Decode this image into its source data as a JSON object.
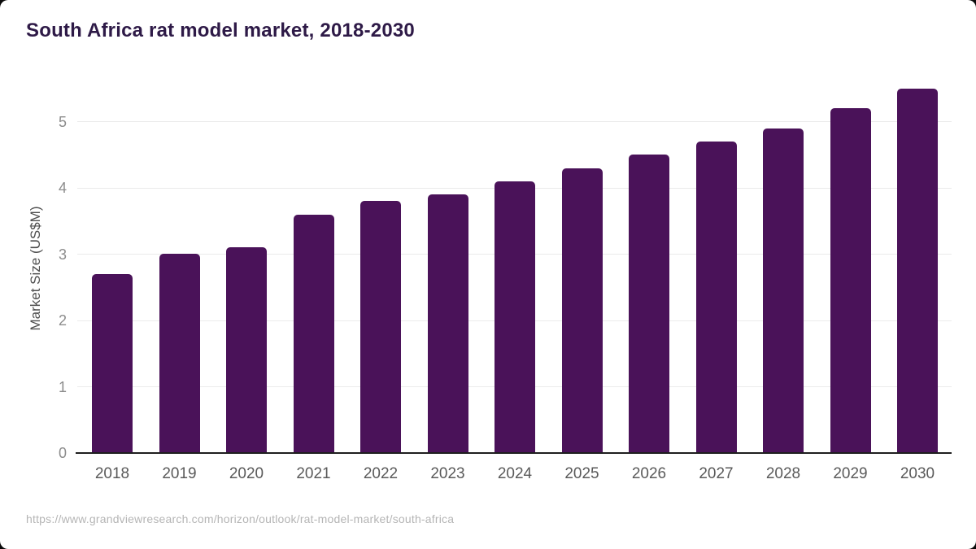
{
  "title": "South Africa rat model market, 2018-2030",
  "footer": {
    "source_url": "https://www.grandviewresearch.com/horizon/outlook/rat-model-market/south-africa"
  },
  "colors": {
    "bar": "#4a1259",
    "title_text": "#2e1a47",
    "axis_line": "#1f1f1f",
    "gridline": "#ebebeb",
    "y_tick_text": "#8c8c8c",
    "x_tick_text": "#5a5a5a",
    "y_axis_label_text": "#4d4d4d",
    "source_text": "#b5b5b5",
    "card_background": "#ffffff"
  },
  "chart_data": {
    "type": "bar",
    "title": "South Africa rat model market, 2018-2030",
    "categories": [
      "2018",
      "2019",
      "2020",
      "2021",
      "2022",
      "2023",
      "2024",
      "2025",
      "2026",
      "2027",
      "2028",
      "2029",
      "2030"
    ],
    "values": [
      2.7,
      3.0,
      3.1,
      3.6,
      3.8,
      3.9,
      4.1,
      4.3,
      4.5,
      4.7,
      4.9,
      5.2,
      5.5
    ],
    "xlabel": "",
    "ylabel": "Market Size (US$M)",
    "ylim": [
      0,
      5.62
    ],
    "yticks": [
      0,
      1,
      2,
      3,
      4,
      5
    ],
    "grid": true,
    "legend": "none",
    "bar_color": "#4a1259"
  }
}
